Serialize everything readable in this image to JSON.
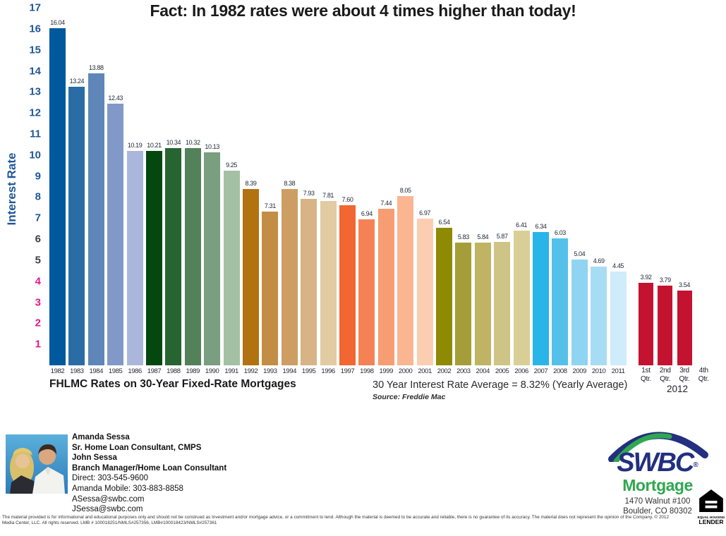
{
  "title": "Fact:  In 1982 rates were about 4 times higher than today!",
  "chart_data": {
    "type": "bar",
    "title": "Fact: In 1982 rates were about 4 times higher than today!",
    "xlabel": "",
    "ylabel": "Interest Rate",
    "ylim": [
      0,
      17
    ],
    "grid": false,
    "y_ticks": [
      {
        "v": 17,
        "color": "#1E5799"
      },
      {
        "v": 16,
        "color": "#1E5799"
      },
      {
        "v": 15,
        "color": "#1E5799"
      },
      {
        "v": 14,
        "color": "#1E5799"
      },
      {
        "v": 13,
        "color": "#1E5799"
      },
      {
        "v": 12,
        "color": "#1E5799"
      },
      {
        "v": 11,
        "color": "#1E5799"
      },
      {
        "v": 10,
        "color": "#1E5799"
      },
      {
        "v": 9,
        "color": "#1E5799"
      },
      {
        "v": 8,
        "color": "#1E5799"
      },
      {
        "v": 7,
        "color": "#1E5799"
      },
      {
        "v": 6,
        "color": "#3F3F46"
      },
      {
        "v": 5,
        "color": "#3F3F46"
      },
      {
        "v": 4,
        "color": "#E4198B"
      },
      {
        "v": 3,
        "color": "#E4198B"
      },
      {
        "v": 2,
        "color": "#E4198B"
      },
      {
        "v": 1,
        "color": "#E4198B"
      }
    ],
    "years": {
      "categories": [
        "1982",
        "1983",
        "1984",
        "1985",
        "1986",
        "1987",
        "1988",
        "1989",
        "1990",
        "1991",
        "1992",
        "1993",
        "1994",
        "1995",
        "1996",
        "1997",
        "1998",
        "1999",
        "2000",
        "2001",
        "2002",
        "2003",
        "2004",
        "2005",
        "2006",
        "2007",
        "2008",
        "2009",
        "2010",
        "2011"
      ],
      "values": [
        16.04,
        13.24,
        13.88,
        12.43,
        10.19,
        10.21,
        10.34,
        10.32,
        10.13,
        9.25,
        8.39,
        7.31,
        8.38,
        7.93,
        7.81,
        7.6,
        6.94,
        7.44,
        8.05,
        6.97,
        6.54,
        5.83,
        5.84,
        5.87,
        6.41,
        6.34,
        6.03,
        5.04,
        4.69,
        4.45
      ],
      "labels": [
        "16.04",
        "13.24",
        "13.88",
        "12.43",
        "10.19",
        "10.21",
        "10.34",
        "10.32",
        "10.13",
        "9.25",
        "8.39",
        "7.31",
        "8.38",
        "7.93",
        "7.81",
        "7.60",
        "6.94",
        "7.44",
        "8.05",
        "6.97",
        "6.54",
        "5.83",
        "5.84",
        "5.87",
        "6.41",
        "6.34",
        "6.03",
        "5.04",
        "4.69",
        "4.45"
      ],
      "colors": [
        "#00599C",
        "#2A6CA5",
        "#5E86B8",
        "#8199C8",
        "#AAB7DA",
        "#04470F",
        "#266430",
        "#53815A",
        "#7A9E80",
        "#A3C0A5",
        "#B27211",
        "#C38D45",
        "#CD9E63",
        "#D8B385",
        "#E2CAA3",
        "#F26631",
        "#F58254",
        "#F79D73",
        "#F9B691",
        "#FCCEB1",
        "#8F8A04",
        "#A59E38",
        "#BFB463",
        "#CDC486",
        "#D9CF96",
        "#29B5E8",
        "#55C0EA",
        "#8FD4F2",
        "#A8DCF5",
        "#D0EBFA"
      ]
    },
    "quarters": {
      "group_label": "2012",
      "categories": [
        {
          "top": "1st",
          "bottom": "Qtr."
        },
        {
          "top": "2nd",
          "bottom": "Qtr."
        },
        {
          "top": "3rd",
          "bottom": "Qtr."
        },
        {
          "top": "4th",
          "bottom": "Qtr."
        }
      ],
      "values": [
        3.92,
        3.79,
        3.54,
        null
      ],
      "labels": [
        "3.92",
        "3.79",
        "3.54",
        ""
      ],
      "color": "#C41231"
    },
    "x_title": "FHLMC Rates on 30-Year Fixed-Rate Mortgages",
    "annotation": "30 Year Interest Rate Average = 8.32% (Yearly Average)",
    "source": "Source: Freddie Mac"
  },
  "footer": {
    "contact": {
      "lines": [
        {
          "text": "Amanda Sessa",
          "bold": true,
          "email": false
        },
        {
          "text": "Sr. Home Loan Consultant, CMPS",
          "bold": true,
          "email": false
        },
        {
          "text": "John Sessa",
          "bold": true,
          "email": false
        },
        {
          "text": "Branch Manager/Home Loan Consultant",
          "bold": true,
          "email": false
        },
        {
          "text": "Direct: 303-545-9600",
          "bold": false,
          "email": false
        },
        {
          "text": "Amanda Mobile: 303-883-8858",
          "bold": false,
          "email": false
        },
        {
          "text": "ASessa@swbc.com",
          "bold": false,
          "email": true
        },
        {
          "text": "JSessa@swbc.com",
          "bold": false,
          "email": true
        }
      ]
    },
    "logo": {
      "brand": "SWBC",
      "reg": "®",
      "sub": "Mortgage",
      "address1": "1470 Walnut #100",
      "address2": "Boulder, CO 80302",
      "navy": "#232F7F",
      "green": "#2FA84F"
    },
    "ehl": {
      "line1": "EQUAL HOUSING",
      "line2": "LENDER"
    },
    "disclaimer": "The material provided is for informational and educational purposes only and should not be construed as Investment and/or mortgage advice, or a commitment to lend. Although the material is deemed to be accurate and reliable, there is no guarantee of its accuracy. The material does not represent the opinion of the Company. © 2012 Media Center, LLC. All rights reserved. LMB # 100018251/NMLS#257356, LMB#100018423/NMLS#257361"
  }
}
